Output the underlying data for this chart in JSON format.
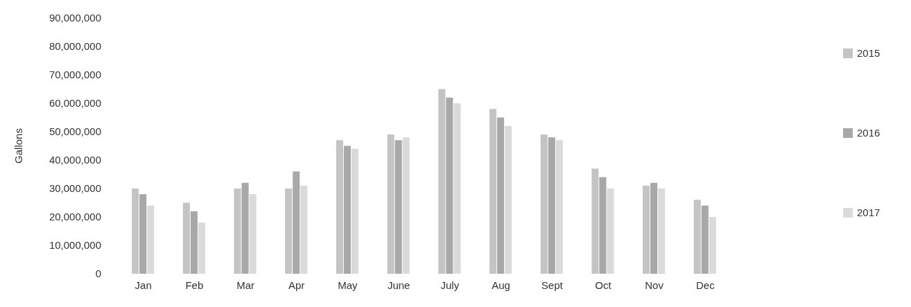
{
  "chart_data": {
    "type": "bar",
    "ylabel": "Gallons",
    "categories": [
      "Jan",
      "Feb",
      "Mar",
      "Apr",
      "May",
      "June",
      "July",
      "Aug",
      "Sept",
      "Oct",
      "Nov",
      "Dec"
    ],
    "series": [
      {
        "name": "2015",
        "color": "#c4c4c4",
        "values": [
          30000000,
          25000000,
          30000000,
          30000000,
          47000000,
          49000000,
          65000000,
          58000000,
          49000000,
          37000000,
          31000000,
          26000000
        ]
      },
      {
        "name": "2016",
        "color": "#a8a8a8",
        "values": [
          28000000,
          22000000,
          32000000,
          36000000,
          45000000,
          47000000,
          62000000,
          55000000,
          48000000,
          34000000,
          32000000,
          24000000
        ]
      },
      {
        "name": "2017",
        "color": "#dadada",
        "values": [
          24000000,
          18000000,
          28000000,
          31000000,
          44000000,
          48000000,
          60000000,
          52000000,
          47000000,
          30000000,
          30000000,
          20000000
        ]
      }
    ],
    "ylim": [
      0,
      90000000
    ],
    "yticks": [
      {
        "value": 0,
        "label": "0"
      },
      {
        "value": 10000000,
        "label": "10,000,000"
      },
      {
        "value": 20000000,
        "label": "20,000,000"
      },
      {
        "value": 30000000,
        "label": "30,000,000"
      },
      {
        "value": 40000000,
        "label": "40,000,000"
      },
      {
        "value": 50000000,
        "label": "50,000,000"
      },
      {
        "value": 60000000,
        "label": "60,000,000"
      },
      {
        "value": 70000000,
        "label": "70,000,000"
      },
      {
        "value": 80000000,
        "label": "80,000,000"
      },
      {
        "value": 90000000,
        "label": "90,000,000"
      }
    ],
    "legend": "right"
  }
}
